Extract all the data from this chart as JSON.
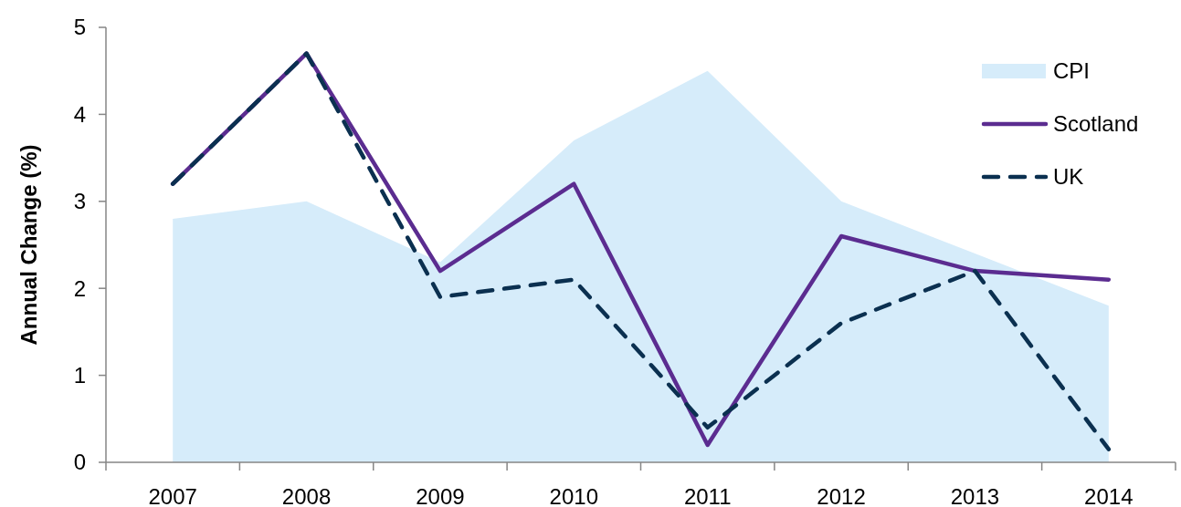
{
  "chart_data": {
    "type": "line",
    "ylabel": "Annual Change (%)",
    "categories": [
      "2007",
      "2008",
      "2009",
      "2010",
      "2011",
      "2012",
      "2013",
      "2014"
    ],
    "series": [
      {
        "name": "CPI",
        "type": "area",
        "color": "#d6ecfa",
        "values": [
          2.8,
          3.0,
          2.3,
          3.7,
          4.5,
          3.0,
          2.4,
          1.8
        ]
      },
      {
        "name": "Scotland",
        "color": "#5b2c90",
        "line_style": "solid",
        "values": [
          3.2,
          4.7,
          2.2,
          3.2,
          0.2,
          2.6,
          2.2,
          2.1
        ]
      },
      {
        "name": "UK",
        "color": "#0b3050",
        "line_style": "dashed",
        "values": [
          3.2,
          4.7,
          1.9,
          2.1,
          0.4,
          1.6,
          2.2,
          0.15
        ]
      }
    ],
    "ylim": [
      0,
      5
    ],
    "yticks": [
      0,
      1,
      2,
      3,
      4,
      5
    ],
    "grid": false,
    "legend": "top right",
    "marker": "none"
  }
}
